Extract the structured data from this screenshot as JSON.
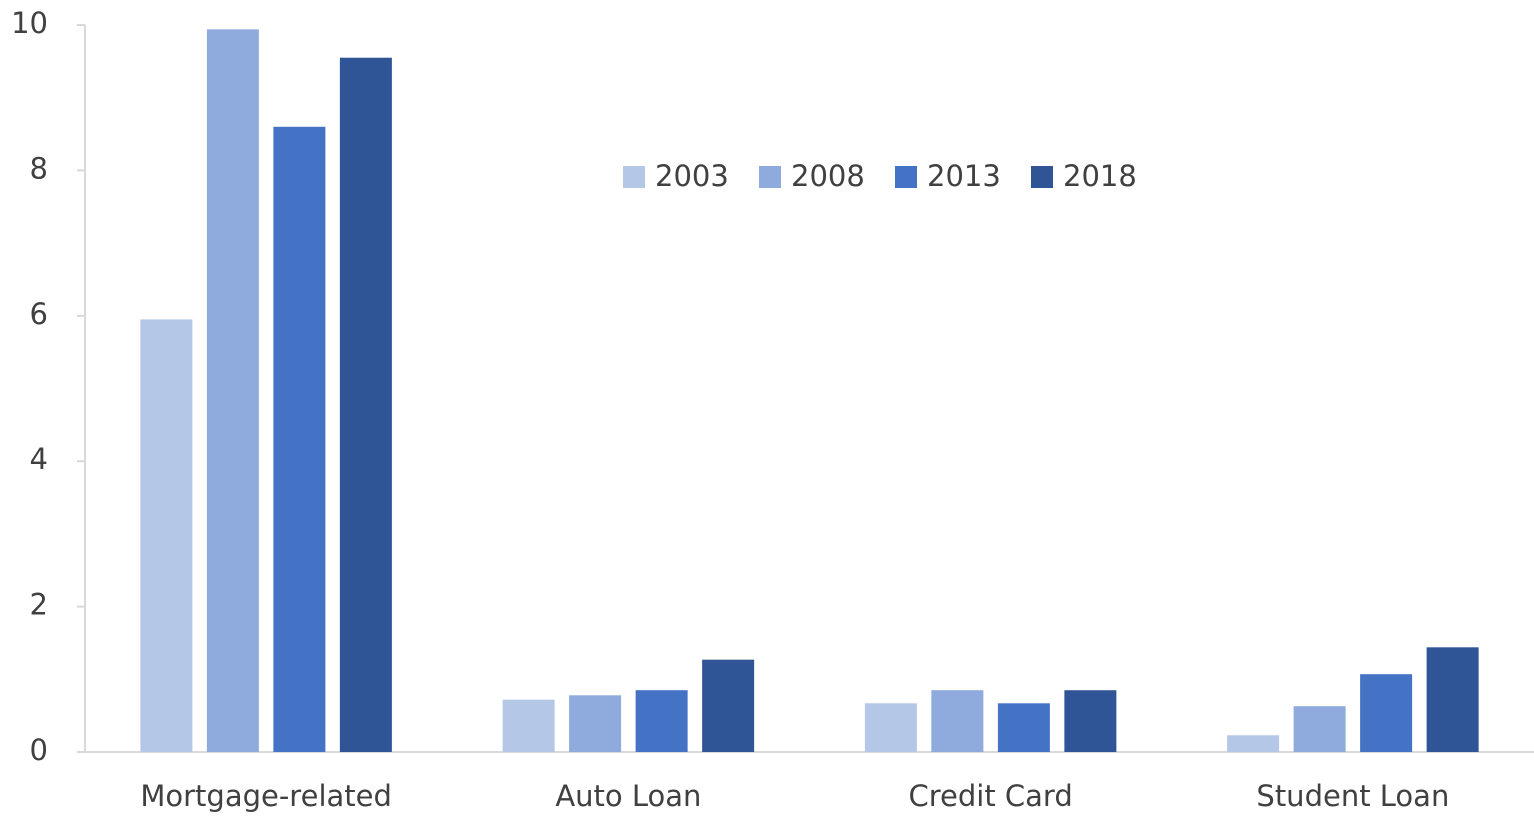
{
  "chart_data": {
    "type": "bar",
    "categories": [
      "Mortgage-related",
      "Auto Loan",
      "Credit Card",
      "Student Loan"
    ],
    "series": [
      {
        "name": "2003",
        "color": "#b4c7e7",
        "values": [
          5.95,
          0.72,
          0.67,
          0.23
        ]
      },
      {
        "name": "2008",
        "color": "#8faadc",
        "values": [
          9.94,
          0.78,
          0.85,
          0.63
        ]
      },
      {
        "name": "2013",
        "color": "#4472c4",
        "values": [
          8.6,
          0.85,
          0.67,
          1.07
        ]
      },
      {
        "name": "2018",
        "color": "#2f5597",
        "values": [
          9.55,
          1.27,
          0.85,
          1.44
        ]
      }
    ],
    "ylim": [
      0,
      10
    ],
    "yticks": [
      0,
      2,
      4,
      6,
      8,
      10
    ],
    "grid": false,
    "legend": "top"
  }
}
